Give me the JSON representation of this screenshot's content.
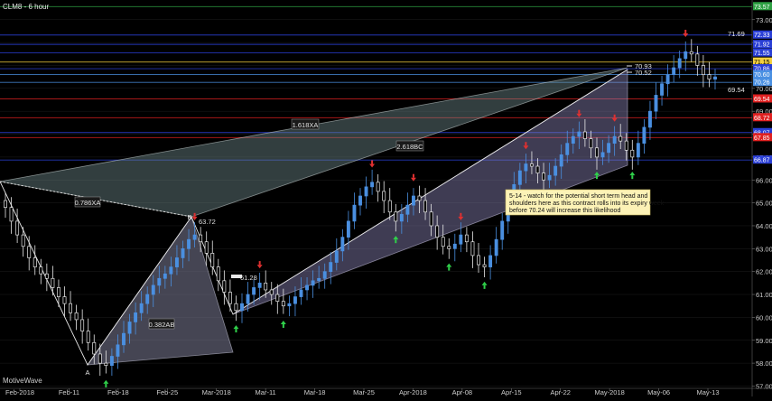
{
  "chart_data": {
    "type": "candlestick",
    "symbol_title": "CLM8 - 6 hour",
    "watermark": "MotiveWave",
    "ylim": [
      56.9,
      73.7
    ],
    "x_ticks": [
      "Feb-2018",
      "Feb-11",
      "Feb-18",
      "Feb-25",
      "Mar-2018",
      "Mar-11",
      "Mar-18",
      "Mar-25",
      "Apr-2018",
      "Apr-08",
      "Apr-15",
      "Apr-22",
      "May-2018",
      "May-06",
      "May-13"
    ],
    "y_ticks": [
      "57.00",
      "58.00",
      "59.00",
      "60.00",
      "61.00",
      "62.00",
      "63.00",
      "64.00",
      "65.00",
      "66.00",
      "67.00",
      "68.00",
      "69.00",
      "70.00",
      "71.00",
      "72.00",
      "73.00"
    ],
    "price_levels": [
      {
        "price": 73.57,
        "label": "73.57",
        "color": "#2ea043"
      },
      {
        "price": 72.33,
        "label": "72.33",
        "color": "#2a3fd6"
      },
      {
        "price": 71.92,
        "label": "71.92",
        "color": "#2a3fd6"
      },
      {
        "price": 71.55,
        "label": "71.55",
        "color": "#2a3fd6"
      },
      {
        "price": 71.15,
        "label": "71.15",
        "color": "#f4d03f"
      },
      {
        "price": 70.86,
        "label": "70.86",
        "color": "#2a3fd6"
      },
      {
        "price": 70.6,
        "label": "70.60",
        "color": "#4a90e2"
      },
      {
        "price": 70.26,
        "label": "70.26",
        "color": "#4a90e2"
      },
      {
        "price": 69.54,
        "label": "69.54",
        "color": "#e02020"
      },
      {
        "price": 68.72,
        "label": "68.72",
        "color": "#e02020"
      },
      {
        "price": 68.07,
        "label": "68.07",
        "color": "#2a3fd6"
      },
      {
        "price": 67.85,
        "label": "67.85",
        "color": "#e02020"
      },
      {
        "price": 66.87,
        "label": "66.87",
        "color": "#2a3fd6"
      }
    ],
    "current_price_label": "71.69",
    "harmonic_labels": [
      "1.618XA",
      "0.786XA",
      "2.618BC",
      "0.382AB",
      "A",
      "B"
    ],
    "point_labels": [
      "63.72",
      "61.28",
      "70.93",
      "70.52",
      "69.54"
    ],
    "annotation": "5-14 - watch for the potential short term head and shoulders here as this contract rolls into its expiry week - before 70.24 will increase this likelihood",
    "closes": [
      64.8,
      64.2,
      63.6,
      63.1,
      62.6,
      62.2,
      61.9,
      61.7,
      61.3,
      60.9,
      60.6,
      60.2,
      59.9,
      59.4,
      58.9,
      58.4,
      58.0,
      57.9,
      58.3,
      58.8,
      59.3,
      59.8,
      60.2,
      60.6,
      61.0,
      61.4,
      61.7,
      61.9,
      62.2,
      62.6,
      63.0,
      63.4,
      63.6,
      63.3,
      62.8,
      62.2,
      61.6,
      61.1,
      60.6,
      60.3,
      60.6,
      61.0,
      61.3,
      61.5,
      61.2,
      61.0,
      60.7,
      60.5,
      60.6,
      60.9,
      61.2,
      61.4,
      61.6,
      61.7,
      62.0,
      62.4,
      62.9,
      63.5,
      64.2,
      64.9,
      65.3,
      65.7,
      65.9,
      65.5,
      65.1,
      64.6,
      64.2,
      64.5,
      64.9,
      65.3,
      65.1,
      64.6,
      64.0,
      63.5,
      63.1,
      63.0,
      63.2,
      63.6,
      63.3,
      62.7,
      62.3,
      62.2,
      62.7,
      63.4,
      64.2,
      65.0,
      65.8,
      66.4,
      66.7,
      66.6,
      66.3,
      66.0,
      66.2,
      66.6,
      67.1,
      67.6,
      67.9,
      68.1,
      67.8,
      67.4,
      67.0,
      67.2,
      67.6,
      67.9,
      67.7,
      67.3,
      67.0,
      67.6,
      68.3,
      69.0,
      69.7,
      70.2,
      70.6,
      70.9,
      71.3,
      71.6,
      71.5,
      71.0,
      70.6,
      70.4,
      70.5
    ]
  }
}
